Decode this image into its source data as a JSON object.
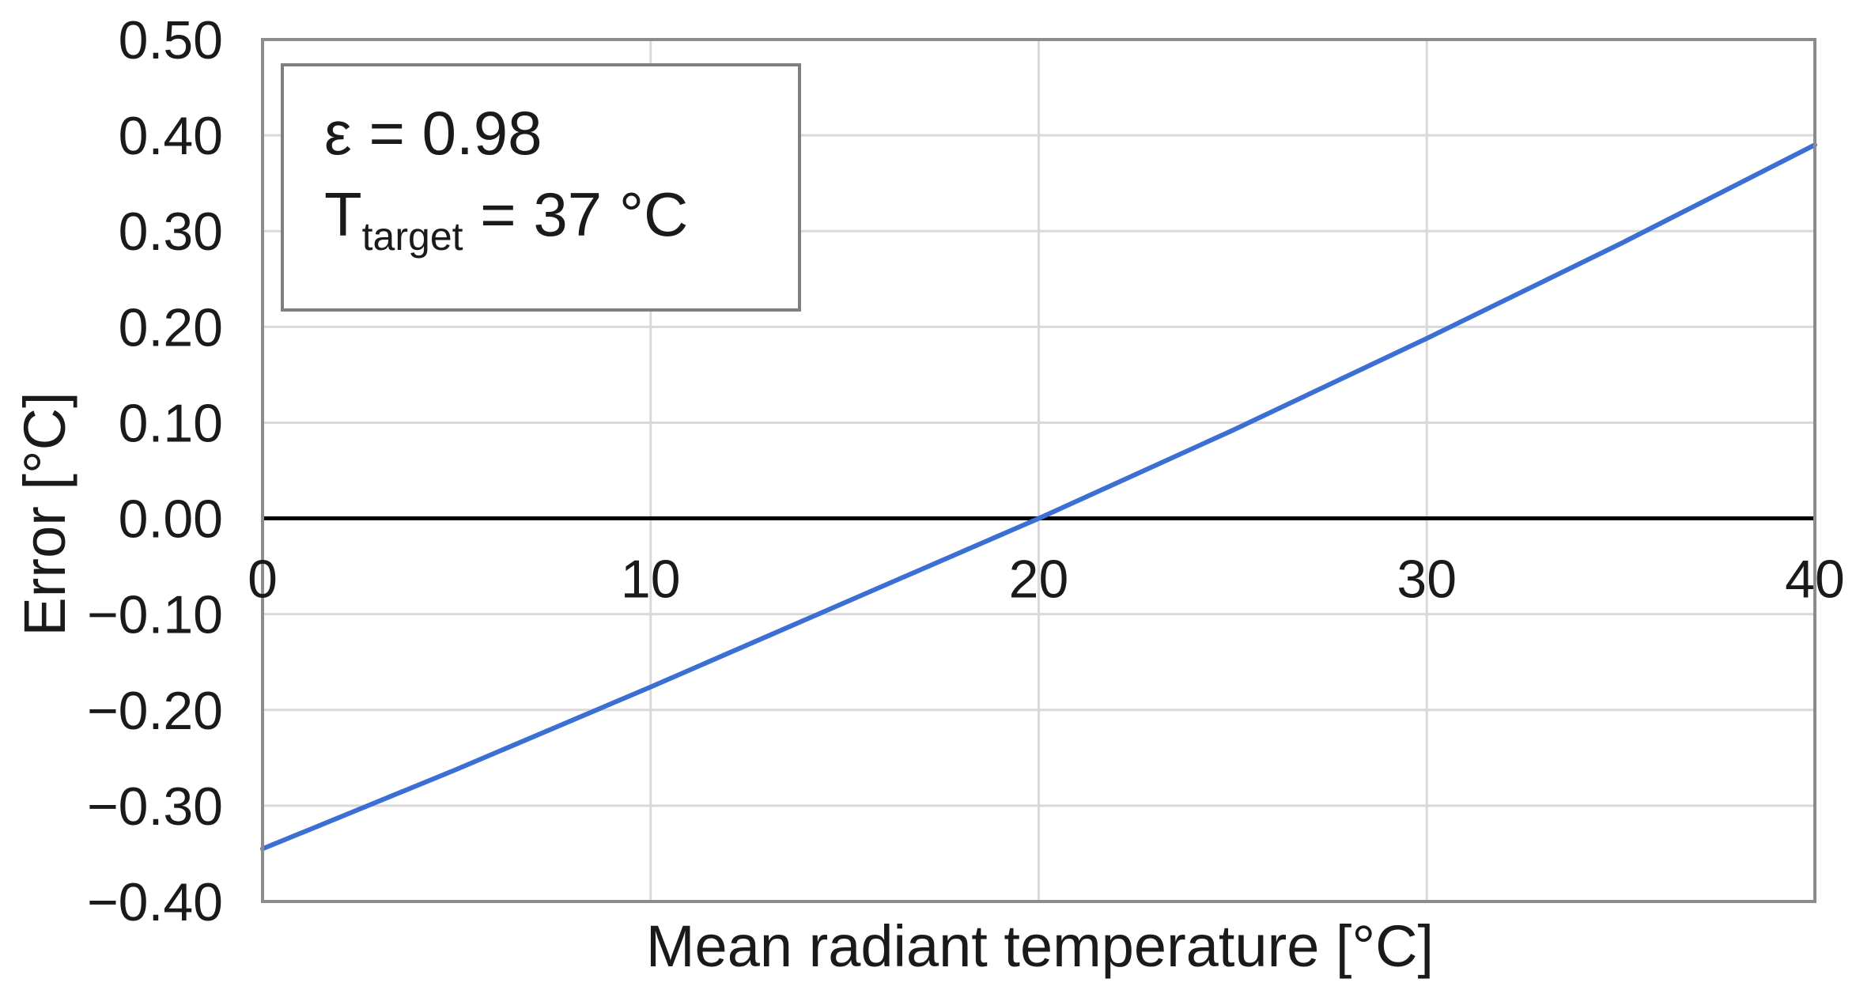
{
  "chart_data": {
    "type": "line",
    "xlabel": "Mean radiant temperature [°C]",
    "ylabel": "Error [°C]",
    "xlim": [
      0,
      40
    ],
    "ylim": [
      -0.4,
      0.5
    ],
    "x_ticks": [
      0,
      10,
      20,
      30,
      40
    ],
    "x_tick_labels": [
      "0",
      "10",
      "20",
      "30",
      "40"
    ],
    "y_ticks": [
      0.5,
      0.4,
      0.3,
      0.2,
      0.1,
      0.0,
      -0.1,
      -0.2,
      -0.3,
      -0.4
    ],
    "y_tick_labels": [
      "0.50",
      "0.40",
      "0.30",
      "0.20",
      "0.10",
      "0.00",
      "−0.10",
      "−0.20",
      "−0.30",
      "−0.40"
    ],
    "grid": true,
    "series": [
      {
        "color": "#3b6fd4",
        "x": [
          0,
          5,
          10,
          15,
          20,
          25,
          30,
          35,
          40
        ],
        "y": [
          -0.345,
          -0.262,
          -0.176,
          -0.088,
          0.0,
          0.092,
          0.188,
          0.287,
          0.39
        ]
      }
    ],
    "reference_line": {
      "y": 0,
      "color": "#000000"
    },
    "annotation": {
      "line1": "ε = 0.98",
      "line2_main": "T",
      "line2_sub": "target",
      "line2_rest": " = 37 °C"
    },
    "colors": {
      "grid": "#d9d9d9",
      "frame": "#8c8c8c",
      "annotation_border": "#7f7f7f"
    }
  }
}
